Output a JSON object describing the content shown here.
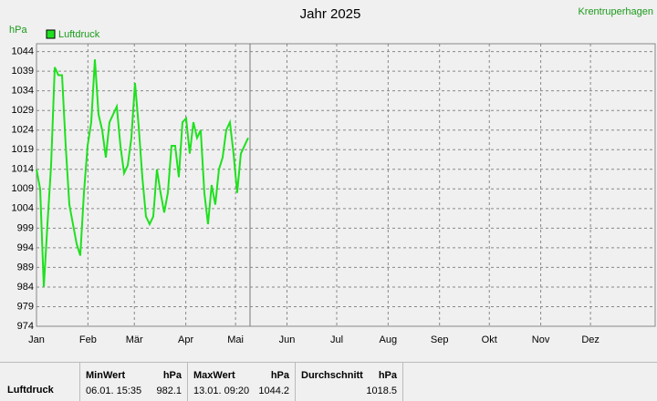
{
  "chart_data": {
    "type": "line",
    "title": "Jahr 2025",
    "station": "Krentruperhagen",
    "y_label": "hPa",
    "x": [
      0,
      2.2,
      4.4,
      6.6,
      8.8,
      11,
      13.2,
      15.4,
      17.6,
      19.8,
      22,
      24.2,
      26.4,
      28.6,
      30.8,
      33,
      35.2,
      37.4,
      39.6,
      41.8,
      44,
      46.2,
      48.4,
      50.6,
      52.8,
      55,
      57.2,
      59.4,
      61.6,
      63.8,
      66,
      68.2,
      70.4,
      72.6,
      74.8,
      77,
      79.2,
      81.4,
      83.6,
      85.8,
      88,
      90.2,
      92.4,
      94.6,
      96.8,
      99,
      101.2,
      103.4,
      105.6,
      107.8,
      110,
      112.2,
      114.4,
      116.6,
      118.8,
      121,
      123.2,
      125.4,
      127.6
    ],
    "series": [
      {
        "name": "Luftdruck",
        "color": "#1fe01f",
        "values": [
          1014,
          1009,
          984,
          1000,
          1015,
          1040,
          1038,
          1038,
          1020,
          1005,
          1000,
          995,
          992,
          1008,
          1020,
          1026,
          1042,
          1028,
          1024,
          1017,
          1026,
          1028,
          1030,
          1020,
          1013,
          1015,
          1022,
          1036,
          1025,
          1012,
          1002,
          1000,
          1002,
          1014,
          1008,
          1003,
          1008,
          1020,
          1020,
          1012,
          1026,
          1027,
          1018,
          1026,
          1022,
          1024,
          1008,
          1000,
          1010,
          1005,
          1014,
          1017,
          1024,
          1026,
          1018,
          1008,
          1018,
          1020,
          1022
        ]
      }
    ],
    "xlim": [
      0,
      373
    ],
    "xticks": [
      {
        "value": 0,
        "label": "Jan"
      },
      {
        "value": 31,
        "label": "Feb"
      },
      {
        "value": 59,
        "label": "Mär"
      },
      {
        "value": 90,
        "label": "Apr"
      },
      {
        "value": 120,
        "label": "Mai"
      },
      {
        "value": 151,
        "label": "Jun"
      },
      {
        "value": 181,
        "label": "Jul"
      },
      {
        "value": 212,
        "label": "Aug"
      },
      {
        "value": 243,
        "label": "Sep"
      },
      {
        "value": 273,
        "label": "Okt"
      },
      {
        "value": 304,
        "label": "Nov"
      },
      {
        "value": 334,
        "label": "Dez"
      }
    ],
    "ylim": [
      974,
      1046
    ],
    "yticks": [
      974,
      979,
      984,
      989,
      994,
      999,
      1004,
      1009,
      1014,
      1019,
      1024,
      1029,
      1034,
      1039,
      1044
    ],
    "grid": true
  },
  "stats": {
    "row_label": "Luftdruck",
    "columns": [
      {
        "title": "MinWert",
        "unit": "hPa",
        "time": "06.01. 15:35",
        "value": 982.1
      },
      {
        "title": "MaxWert",
        "unit": "hPa",
        "time": "13.01. 09:20",
        "value": 1044.2
      },
      {
        "title": "Durchschnitt",
        "unit": "hPa",
        "value": 1018.5
      }
    ]
  }
}
